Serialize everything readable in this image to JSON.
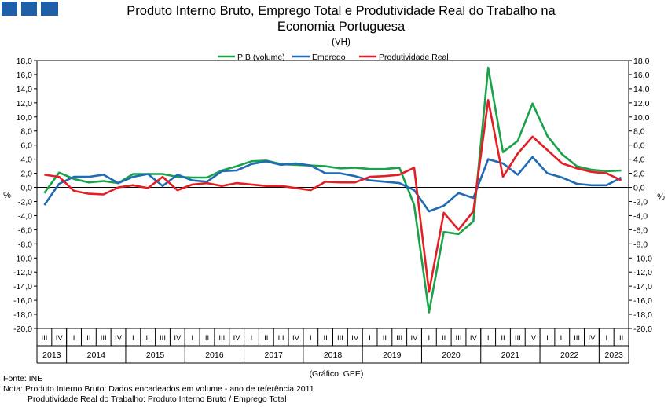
{
  "header": {
    "title_line1": "Produto Interno Bruto, Emprego Total e Produtividade Real do Trabalho na",
    "title_line2": "Economia Portuguesa",
    "subtitle": "(VH)",
    "logo_color": "#1f5fa8"
  },
  "axis": {
    "ylabel_left": "%",
    "ylabel_right": "%"
  },
  "footer": {
    "source": "Fonte: INE",
    "credit": "(Gráfico: GEE)",
    "note_line1": "Nota: Produto Interno Bruto: Dados encadeados em volume - ano de referência 2011",
    "note_line2": "Produtividade Real do Trabalho: Produto Interno Bruto / Emprego Total"
  },
  "chart_data": {
    "type": "line",
    "ylim": [
      -20,
      18
    ],
    "yticks": [
      -20,
      -18,
      -16,
      -14,
      -12,
      -10,
      -8,
      -6,
      -4,
      -2,
      0,
      2,
      4,
      6,
      8,
      10,
      12,
      14,
      16,
      18
    ],
    "grid": false,
    "legend_position": "top-center",
    "quarters": [
      "III",
      "IV",
      "I",
      "II",
      "III",
      "IV",
      "I",
      "II",
      "III",
      "IV",
      "I",
      "II",
      "III",
      "IV",
      "I",
      "II",
      "III",
      "IV",
      "I",
      "II",
      "III",
      "IV",
      "I",
      "II",
      "III",
      "IV",
      "I",
      "II",
      "III",
      "IV",
      "I",
      "II",
      "III",
      "IV",
      "I",
      "II",
      "III",
      "IV",
      "I",
      "II"
    ],
    "years": [
      {
        "label": "2013",
        "quarters": 2
      },
      {
        "label": "2014",
        "quarters": 4
      },
      {
        "label": "2015",
        "quarters": 4
      },
      {
        "label": "2016",
        "quarters": 4
      },
      {
        "label": "2017",
        "quarters": 4
      },
      {
        "label": "2018",
        "quarters": 4
      },
      {
        "label": "2019",
        "quarters": 4
      },
      {
        "label": "2020",
        "quarters": 4
      },
      {
        "label": "2021",
        "quarters": 4
      },
      {
        "label": "2022",
        "quarters": 4
      },
      {
        "label": "2023",
        "quarters": 2
      }
    ],
    "series": [
      {
        "name": "PIB (volume)",
        "color": "#1aa24a",
        "values": [
          -0.8,
          2.1,
          1.2,
          0.7,
          0.9,
          0.6,
          1.9,
          1.9,
          1.9,
          1.5,
          1.4,
          1.4,
          2.4,
          3.0,
          3.7,
          3.8,
          3.3,
          3.2,
          3.1,
          3.0,
          2.7,
          2.8,
          2.6,
          2.6,
          2.8,
          -2.5,
          -17.7,
          -6.3,
          -6.6,
          -4.8,
          17.0,
          5.0,
          6.6,
          11.9,
          7.3,
          4.7,
          3.0,
          2.5,
          2.3,
          2.4
        ]
      },
      {
        "name": "Emprego",
        "color": "#1f6bb5",
        "values": [
          -2.5,
          0.5,
          1.5,
          1.5,
          1.8,
          0.6,
          1.5,
          1.9,
          0.2,
          1.8,
          1.0,
          0.8,
          2.3,
          2.4,
          3.3,
          3.7,
          3.2,
          3.4,
          3.1,
          2.0,
          2.0,
          1.6,
          1.0,
          0.8,
          0.6,
          -0.4,
          -3.4,
          -2.6,
          -0.8,
          -1.5,
          4.0,
          3.4,
          1.8,
          4.3,
          2.0,
          1.4,
          0.5,
          0.3,
          0.3,
          1.4
        ]
      },
      {
        "name": "Produtividade Real",
        "color": "#e41e25",
        "values": [
          1.8,
          1.5,
          -0.5,
          -0.9,
          -1.0,
          0.0,
          0.3,
          -0.1,
          1.5,
          -0.4,
          0.4,
          0.6,
          0.2,
          0.6,
          0.4,
          0.2,
          0.2,
          -0.1,
          -0.4,
          0.8,
          0.7,
          0.7,
          1.5,
          1.6,
          1.8,
          2.8,
          -14.8,
          -3.6,
          -6.0,
          -3.4,
          12.4,
          1.5,
          4.8,
          7.2,
          5.3,
          3.4,
          2.7,
          2.2,
          2.0,
          1.0
        ]
      }
    ]
  }
}
